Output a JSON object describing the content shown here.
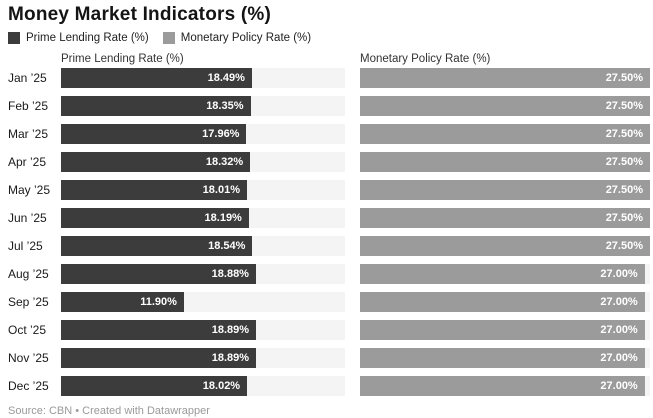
{
  "title": "Money Market Indicators (%)",
  "footer": "Source: CBN • Created with Datawrapper",
  "colors": {
    "track": "#f4f4f4",
    "background": "#ffffff",
    "prime_lending": "#3c3c3c",
    "monetary_policy": "#9b9b9b"
  },
  "chart_data": {
    "type": "bar",
    "orientation": "horizontal",
    "layout": "split-bars-two-columns",
    "title": "Money Market Indicators (%)",
    "categories": [
      "Jan ’25",
      "Feb ’25",
      "Mar ’25",
      "Apr ’25",
      "May ’25",
      "Jun ’25",
      "Jul ’25",
      "Aug ’25",
      "Sep ’25",
      "Oct ’25",
      "Nov ’25",
      "Dec ’25"
    ],
    "series": [
      {
        "name": "Prime Lending Rate (%)",
        "color": "#3c3c3c",
        "values": [
          18.49,
          18.35,
          17.96,
          18.32,
          18.01,
          18.19,
          18.54,
          18.88,
          11.9,
          18.89,
          18.89,
          18.02
        ]
      },
      {
        "name": "Monetary Policy Rate (%)",
        "color": "#9b9b9b",
        "values": [
          27.5,
          27.5,
          27.5,
          27.5,
          27.5,
          27.5,
          27.5,
          27.0,
          27.0,
          27.0,
          27.0,
          27.0
        ]
      }
    ],
    "xlim": [
      0,
      27.5
    ],
    "value_label_format": "two-decimals-percent",
    "grid": false,
    "legend_position": "top-left"
  }
}
